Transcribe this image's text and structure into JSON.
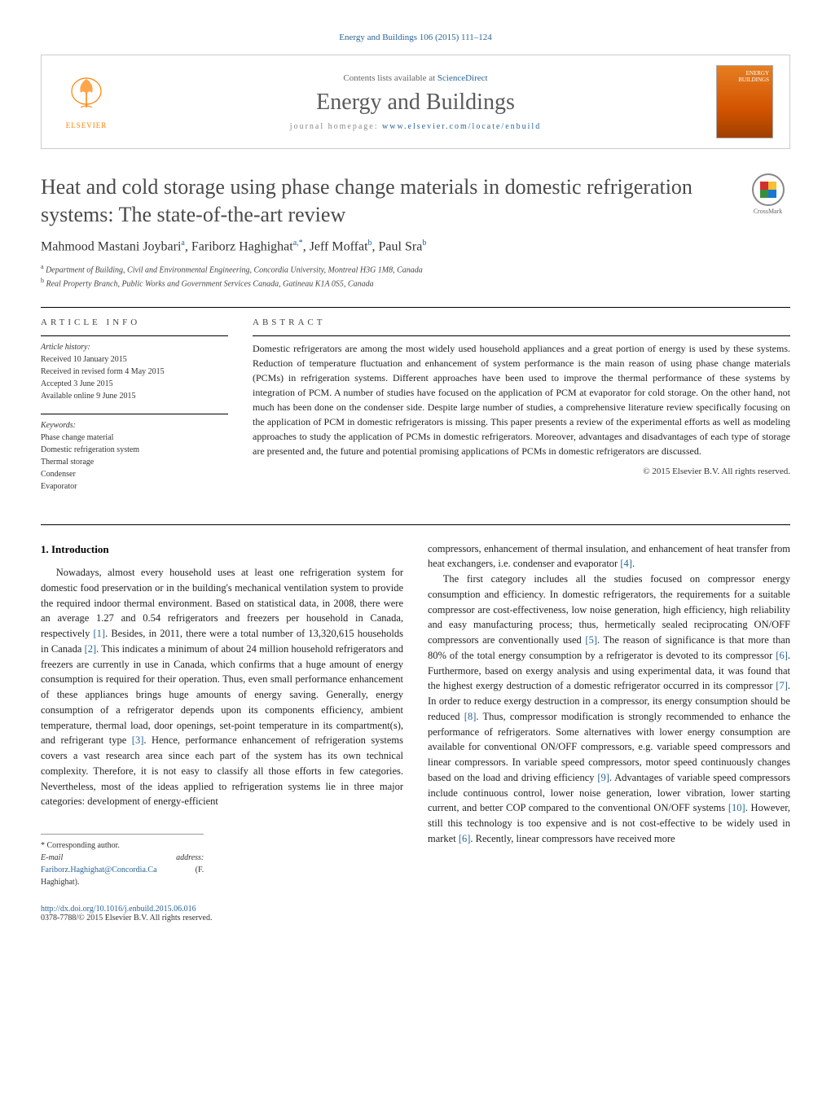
{
  "header": {
    "citation": "Energy and Buildings 106 (2015) 111–124",
    "contents_prefix": "Contents lists available at ",
    "contents_link": "ScienceDirect",
    "journal_name": "Energy and Buildings",
    "homepage_prefix": "journal homepage: ",
    "homepage_url": "www.elsevier.com/locate/enbuild",
    "elsevier_text": "ELSEVIER",
    "cover_line1": "ENERGY",
    "cover_line2": "BUILDINGS",
    "crossmark_label": "CrossMark"
  },
  "article": {
    "title": "Heat and cold storage using phase change materials in domestic refrigeration systems: The state-of-the-art review",
    "authors_html": "Mahmood Mastani Joybari",
    "author1_sup": "a",
    "author2": "Fariborz Haghighat",
    "author2_sup": "a,*",
    "author3": "Jeff Moffat",
    "author3_sup": "b",
    "author4": "Paul Sra",
    "author4_sup": "b",
    "affiliations": {
      "a": "Department of Building, Civil and Environmental Engineering, Concordia University, Montreal H3G 1M8, Canada",
      "b": "Real Property Branch, Public Works and Government Services Canada, Gatineau K1A 0S5, Canada"
    }
  },
  "info": {
    "label": "ARTICLE INFO",
    "history_label": "Article history:",
    "received": "Received 10 January 2015",
    "revised": "Received in revised form 4 May 2015",
    "accepted": "Accepted 3 June 2015",
    "online": "Available online 9 June 2015",
    "keywords_label": "Keywords:",
    "keywords": [
      "Phase change material",
      "Domestic refrigeration system",
      "Thermal storage",
      "Condenser",
      "Evaporator"
    ]
  },
  "abstract": {
    "label": "ABSTRACT",
    "text": "Domestic refrigerators are among the most widely used household appliances and a great portion of energy is used by these systems. Reduction of temperature fluctuation and enhancement of system performance is the main reason of using phase change materials (PCMs) in refrigeration systems. Different approaches have been used to improve the thermal performance of these systems by integration of PCM. A number of studies have focused on the application of PCM at evaporator for cold storage. On the other hand, not much has been done on the condenser side. Despite large number of studies, a comprehensive literature review specifically focusing on the application of PCM in domestic refrigerators is missing. This paper presents a review of the experimental efforts as well as modeling approaches to study the application of PCMs in domestic refrigerators. Moreover, advantages and disadvantages of each type of storage are presented and, the future and potential promising applications of PCMs in domestic refrigerators are discussed.",
    "copyright": "© 2015 Elsevier B.V. All rights reserved."
  },
  "body": {
    "section1_heading": "1. Introduction",
    "p1": "Nowadays, almost every household uses at least one refrigeration system for domestic food preservation or in the building's mechanical ventilation system to provide the required indoor thermal environment. Based on statistical data, in 2008, there were an average 1.27 and 0.54 refrigerators and freezers per household in Canada, respectively [1]. Besides, in 2011, there were a total number of 13,320,615 households in Canada [2]. This indicates a minimum of about 24 million household refrigerators and freezers are currently in use in Canada, which confirms that a huge amount of energy consumption is required for their operation. Thus, even small performance enhancement of these appliances brings huge amounts of energy saving. Generally, energy consumption of a refrigerator depends upon its components efficiency, ambient temperature, thermal load, door openings, set-point temperature in its compartment(s), and refrigerant type [3]. Hence, performance enhancement of refrigeration systems covers a vast research area since each part of the system has its own technical complexity. Therefore, it is not easy to classify all those efforts in few categories. Nevertheless, most of the ideas applied to refrigeration systems lie in three major categories: development of energy-efficient",
    "p2": "compressors, enhancement of thermal insulation, and enhancement of heat transfer from heat exchangers, i.e. condenser and evaporator [4].",
    "p3": "The first category includes all the studies focused on compressor energy consumption and efficiency. In domestic refrigerators, the requirements for a suitable compressor are cost-effectiveness, low noise generation, high efficiency, high reliability and easy manufacturing process; thus, hermetically sealed reciprocating ON/OFF compressors are conventionally used [5]. The reason of significance is that more than 80% of the total energy consumption by a refrigerator is devoted to its compressor [6]. Furthermore, based on exergy analysis and using experimental data, it was found that the highest exergy destruction of a domestic refrigerator occurred in its compressor [7]. In order to reduce exergy destruction in a compressor, its energy consumption should be reduced [8]. Thus, compressor modification is strongly recommended to enhance the performance of refrigerators. Some alternatives with lower energy consumption are available for conventional ON/OFF compressors, e.g. variable speed compressors and linear compressors. In variable speed compressors, motor speed continuously changes based on the load and driving efficiency [9]. Advantages of variable speed compressors include continuous control, lower noise generation, lower vibration, lower starting current, and better COP compared to the conventional ON/OFF systems [10]. However, still this technology is too expensive and is not cost-effective to be widely used in market [6]. Recently, linear compressors have received more"
  },
  "footnote": {
    "corr": "* Corresponding author.",
    "email_label": "E-mail address: ",
    "email": "Fariborz.Haghighat@Concordia.Ca",
    "email_name": " (F. Haghighat)."
  },
  "footer": {
    "doi": "http://dx.doi.org/10.1016/j.enbuild.2015.06.016",
    "issn_copyright": "0378-7788/© 2015 Elsevier B.V. All rights reserved."
  },
  "colors": {
    "link": "#2a6496",
    "elsevier_orange": "#ff8000",
    "body_text": "#222222",
    "heading_gray": "#4a4a4a"
  }
}
